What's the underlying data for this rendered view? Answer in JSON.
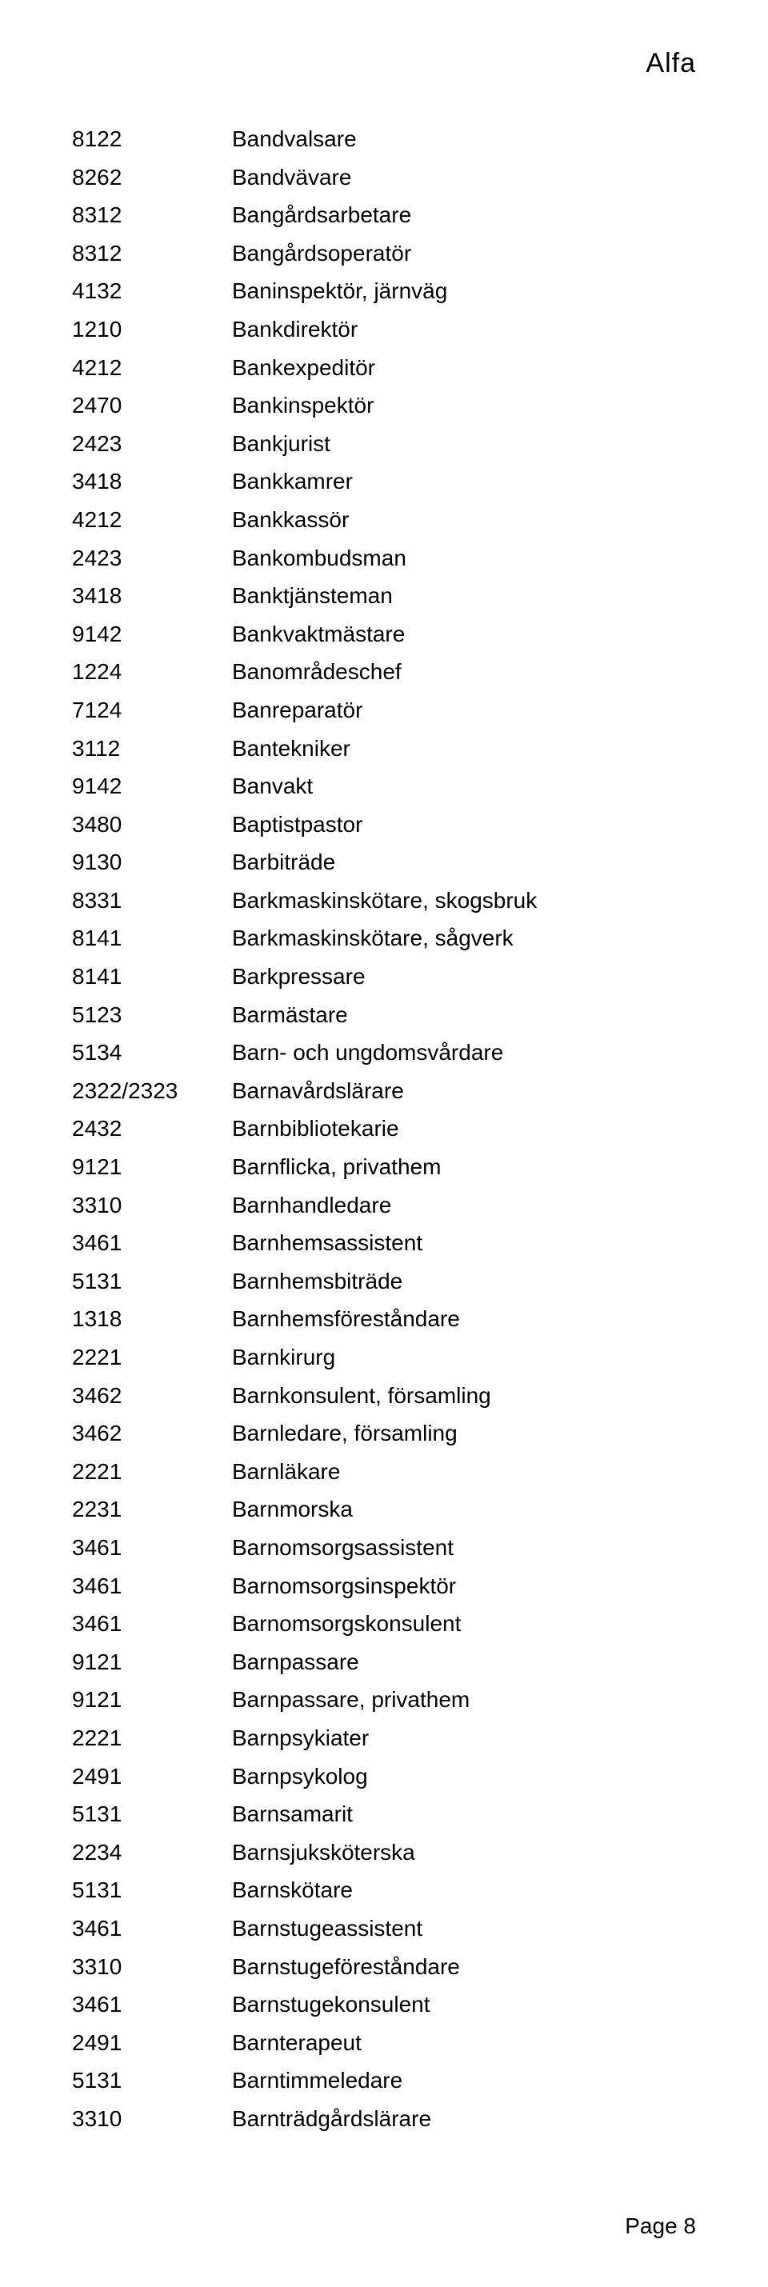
{
  "header": "Alfa",
  "footer": "Page 8",
  "rows": [
    {
      "code": "8122",
      "label": "Bandvalsare"
    },
    {
      "code": "8262",
      "label": "Bandvävare"
    },
    {
      "code": "8312",
      "label": "Bangårdsarbetare"
    },
    {
      "code": "8312",
      "label": "Bangårdsoperatör"
    },
    {
      "code": "4132",
      "label": "Baninspektör, järnväg"
    },
    {
      "code": "1210",
      "label": "Bankdirektör"
    },
    {
      "code": "4212",
      "label": "Bankexpeditör"
    },
    {
      "code": "2470",
      "label": "Bankinspektör"
    },
    {
      "code": "2423",
      "label": "Bankjurist"
    },
    {
      "code": "3418",
      "label": "Bankkamrer"
    },
    {
      "code": "4212",
      "label": "Bankkassör"
    },
    {
      "code": "2423",
      "label": "Bankombudsman"
    },
    {
      "code": "3418",
      "label": "Banktjänsteman"
    },
    {
      "code": "9142",
      "label": "Bankvaktmästare"
    },
    {
      "code": "1224",
      "label": "Banområdeschef"
    },
    {
      "code": "7124",
      "label": "Banreparatör"
    },
    {
      "code": "3112",
      "label": "Bantekniker"
    },
    {
      "code": "9142",
      "label": "Banvakt"
    },
    {
      "code": "3480",
      "label": "Baptistpastor"
    },
    {
      "code": "9130",
      "label": "Barbiträde"
    },
    {
      "code": "8331",
      "label": "Barkmaskinskötare, skogsbruk"
    },
    {
      "code": "8141",
      "label": "Barkmaskinskötare, sågverk"
    },
    {
      "code": "8141",
      "label": "Barkpressare"
    },
    {
      "code": "5123",
      "label": "Barmästare"
    },
    {
      "code": "5134",
      "label": "Barn- och ungdomsvårdare"
    },
    {
      "code": "2322/2323",
      "label": "Barnavårdslärare"
    },
    {
      "code": "2432",
      "label": "Barnbibliotekarie"
    },
    {
      "code": "9121",
      "label": "Barnflicka, privathem"
    },
    {
      "code": "3310",
      "label": "Barnhandledare"
    },
    {
      "code": "3461",
      "label": "Barnhemsassistent"
    },
    {
      "code": "5131",
      "label": "Barnhemsbiträde"
    },
    {
      "code": "1318",
      "label": "Barnhemsföreståndare"
    },
    {
      "code": "2221",
      "label": "Barnkirurg"
    },
    {
      "code": "3462",
      "label": "Barnkonsulent, församling"
    },
    {
      "code": "3462",
      "label": "Barnledare, församling"
    },
    {
      "code": "2221",
      "label": "Barnläkare"
    },
    {
      "code": "2231",
      "label": "Barnmorska"
    },
    {
      "code": "3461",
      "label": "Barnomsorgsassistent"
    },
    {
      "code": "3461",
      "label": "Barnomsorgsinspektör"
    },
    {
      "code": "3461",
      "label": "Barnomsorgskonsulent"
    },
    {
      "code": "9121",
      "label": "Barnpassare"
    },
    {
      "code": "9121",
      "label": "Barnpassare, privathem"
    },
    {
      "code": "2221",
      "label": "Barnpsykiater"
    },
    {
      "code": "2491",
      "label": "Barnpsykolog"
    },
    {
      "code": "5131",
      "label": "Barnsamarit"
    },
    {
      "code": "2234",
      "label": "Barnsjuksköterska"
    },
    {
      "code": "5131",
      "label": "Barnskötare"
    },
    {
      "code": "3461",
      "label": "Barnstugeassistent"
    },
    {
      "code": "3310",
      "label": "Barnstugeföreståndare"
    },
    {
      "code": "3461",
      "label": "Barnstugekonsulent"
    },
    {
      "code": "2491",
      "label": "Barnterapeut"
    },
    {
      "code": "5131",
      "label": "Barntimmeledare"
    },
    {
      "code": "3310",
      "label": "Barnträdgårdslärare"
    }
  ]
}
